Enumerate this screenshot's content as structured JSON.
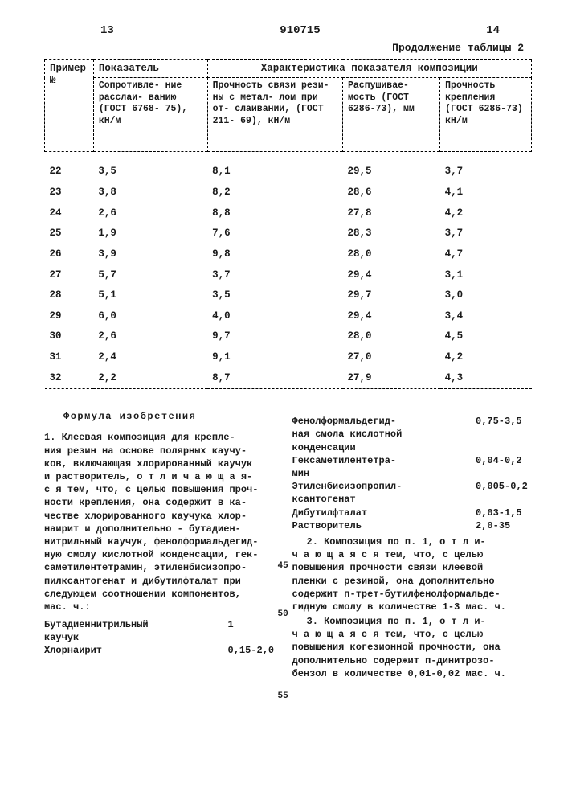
{
  "page_left": "13",
  "patent_no": "910715",
  "page_right": "14",
  "continuation": "Продолжение таблицы 2",
  "table": {
    "col0_hdr": "Пример\n№",
    "col1_hdr": "Показатель",
    "span_hdr": "Характеристика показателя композиции",
    "sub1": "Сопротивле-\nние расслаи-\nванию\n(ГОСТ 6768-\n75), кН/м",
    "sub2": "Прочность\nсвязи рези-\nны с метал-\nлом при от-\nслаивании,\n(ГОСТ 211-\n69), кН/м",
    "sub3": "Распушивае-\nмость (ГОСТ\n6286-73), мм",
    "sub4": "Прочность\nкрепления\n(ГОСТ 6286-73)\nкН/м",
    "rows": [
      [
        "22",
        "3,5",
        "8,1",
        "29,5",
        "3,7"
      ],
      [
        "23",
        "3,8",
        "8,2",
        "28,6",
        "4,1"
      ],
      [
        "24",
        "2,6",
        "8,8",
        "27,8",
        "4,2"
      ],
      [
        "25",
        "1,9",
        "7,6",
        "28,3",
        "3,7"
      ],
      [
        "26",
        "3,9",
        "9,8",
        "28,0",
        "4,7"
      ],
      [
        "27",
        "5,7",
        "3,7",
        "29,4",
        "3,1"
      ],
      [
        "28",
        "5,1",
        "3,5",
        "29,7",
        "3,0"
      ],
      [
        "29",
        "6,0",
        "4,0",
        "29,4",
        "3,4"
      ],
      [
        "30",
        "2,6",
        "9,7",
        "28,0",
        "4,5"
      ],
      [
        "31",
        "2,4",
        "9,1",
        "27,0",
        "4,2"
      ],
      [
        "32",
        "2,2",
        "8,7",
        "27,9",
        "4,3"
      ]
    ]
  },
  "formula_title": "Формула изобретения",
  "left_text": "1. Клеевая композиция для крепле-\nния резин на основе полярных каучу-\nков, включающая хлорированный каучук\nи растворитель, о т л и ч а ю щ а я-\nс я  тем, что, с целью повышения проч-\nности крепления, она содержит в ка-\nчестве хлорированного каучука хлор-\nнаирит и дополнительно - бутадиен-\nнитрильный каучук, фенолформальдегид-\nную смолу кислотной конденсации, гек-\nсаметилентетрамин, этиленбисизопро-\nпилксантогенат и дибутилфталат при\nследующем соотношении компонентов,\nмас. ч.:",
  "left_components": [
    {
      "lbl": "Бутадиеннитрильный\nкаучук",
      "val": "1"
    },
    {
      "lbl": "Хлорнаирит",
      "val": "0,15-2,0"
    }
  ],
  "right_components": [
    {
      "lbl": "Фенолформальдегид-\nная смола кислотной\nконденсации",
      "val": "0,75-3,5"
    },
    {
      "lbl": "Гексаметилентетра-\nмин",
      "val": "0,04-0,2"
    },
    {
      "lbl": "Этиленбисизопропил-\nксантогенат",
      "val": "0,005-0,2"
    },
    {
      "lbl": "Дибутилфталат",
      "val": "0,03-1,5"
    },
    {
      "lbl": "Растворитель",
      "val": "2,0-35"
    }
  ],
  "right_text2": "2. Композиция по п. 1, о т л и-\nч а ю щ а я с я  тем, что, с целью\nповышения прочности связи клеевой\nпленки с резиной, она дополнительно\nсодержит п-трет-бутилфенолформальде-\nгидную смолу в количестве 1-3 мас. ч.",
  "right_text3": "3. Композиция по п. 1, о т л и-\nч а ю щ а я с я  тем, что, с целью\nповышения когезионной прочности, она\nдополнительно содержит п-динитрозо-\nбензол в количестве 0,01-0,02 мас. ч.",
  "side_line_45": "45",
  "side_line_50": "50",
  "side_line_55": "55"
}
